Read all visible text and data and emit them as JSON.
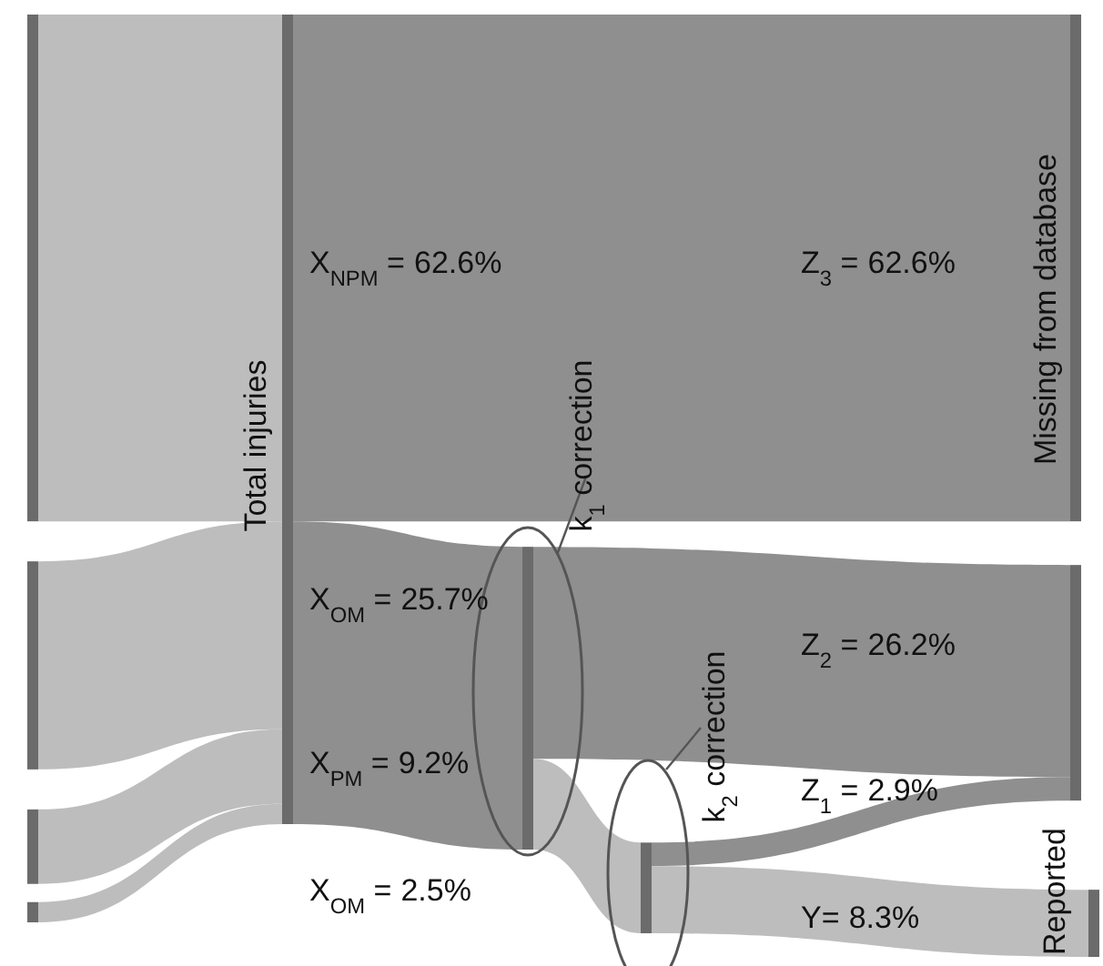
{
  "chart_data": {
    "type": "other",
    "categories": [
      "X$_{NPM}$ =",
      "X$_{OM}$ =",
      "X$_{PM}$ =",
      "X$_{OM}$ =",
      "Z$_{3}$ =",
      "Z$_{2}$ =",
      "Z$_{1}$ =",
      "Y="
    ],
    "values": [
      62.6,
      25.7,
      9.2,
      2.5,
      62.6,
      26.2,
      2.9,
      8.3
    ],
    "value_labels": [
      "62.6%",
      "25.7%",
      "9.2%",
      "2.5%",
      "62.6%",
      "26.2%",
      "2.9%",
      "8.3%"
    ],
    "annotations": [
      "Total injuries",
      "k$_{1}$ correction",
      "k$_{2}$ correction",
      "Missing from database",
      "Reported"
    ]
  }
}
